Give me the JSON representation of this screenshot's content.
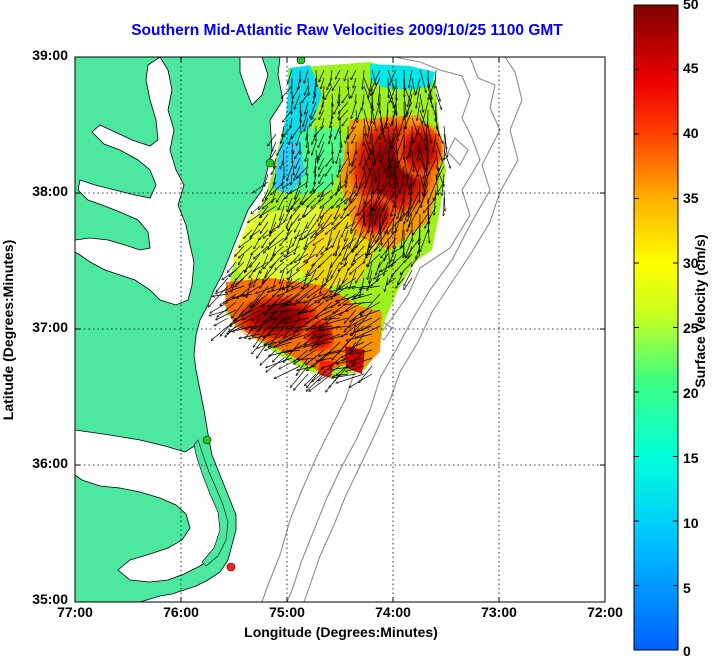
{
  "title": "Southern Mid-Atlantic Raw Velocities 2009/10/25 1100 GMT",
  "xlabel": "Longitude (Degrees:Minutes)",
  "ylabel": "Latitude (Degrees:Minutes)",
  "colorbar_label": "Surface Velocity (cm/s)",
  "x_ticks": [
    "77:00",
    "76:00",
    "75:00",
    "74:00",
    "73:00",
    "72:00"
  ],
  "y_ticks": [
    "39:00",
    "38:00",
    "37:00",
    "36:00",
    "35:00"
  ],
  "colorbar_ticks": [
    "50",
    "45",
    "40",
    "35",
    "30",
    "25",
    "20",
    "15",
    "10",
    "5",
    "0"
  ],
  "chart_data": {
    "type": "heatmap",
    "x_range": [
      -77,
      -72
    ],
    "y_range": [
      35,
      39
    ],
    "colorbar_range": [
      0,
      50
    ],
    "grid": "dotted",
    "colors": {
      "land": "#4de8a0",
      "coast_line": "#000000",
      "bathymetry": "#8c8c8c",
      "title": "#0000ff",
      "station": "#22cc22",
      "station_alert": "#ff2020"
    },
    "stations": [
      {
        "lon": -74.87,
        "lat": 39.0,
        "status": "ok"
      },
      {
        "lon": -75.15,
        "lat": 38.22,
        "status": "ok"
      },
      {
        "lon": -75.75,
        "lat": 36.18,
        "status": "ok"
      },
      {
        "lon": -75.52,
        "lat": 35.25,
        "status": "alert"
      }
    ]
  }
}
